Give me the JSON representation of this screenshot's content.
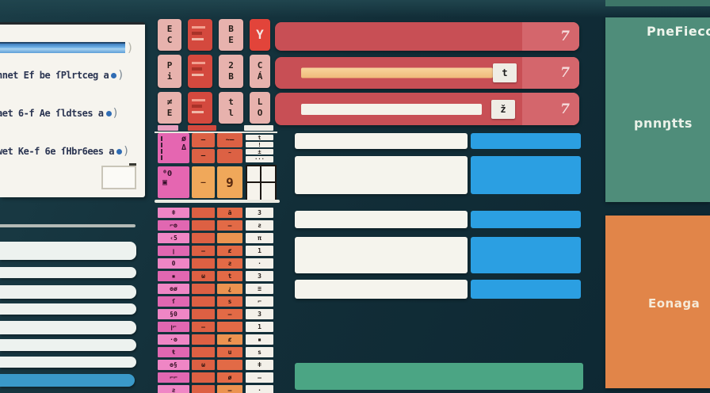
{
  "palette": {
    "background_dark_teal": "#122e38",
    "panel_white": "#f6f4ee",
    "progress_blue": "#5aa7e0",
    "key_pink": "#e7b2ad",
    "key_red": "#d4493e",
    "key_bright_red": "#e2443a",
    "table_pink": "#e167b1",
    "table_pink_light": "#ef86c5",
    "table_orange": "#dd6043",
    "table_orange_light": "#ec9350",
    "table_white": "#f3f0e9",
    "slider_row_red": "#c84f55",
    "slider_track_orange": "#f4c98c",
    "slider_track_white": "#f5f2ea",
    "row_blue": "#2b9fe2",
    "row_white": "#f5f4ed",
    "green_bar": "#4ba584",
    "teal_panel": "#4f8d7a",
    "orange_panel": "#e18549",
    "left_bar_blue": "#3a99c9"
  },
  "code_panel": {
    "bar_paren": ")",
    "lines": [
      {
        "text": "nnet Ef be ſPlrtceg a",
        "paren": ")"
      },
      {
        "text": "aet 6-f Ae ſldtses a",
        "paren": ")"
      },
      {
        "text": "wet Ke-f 6e ſHbr6ees a",
        "paren": ")"
      }
    ]
  },
  "keyboard": {
    "cells": [
      {
        "glyph": "E\nC"
      },
      {
        "glyph": ""
      },
      {
        "glyph": "B\nE"
      },
      {
        "glyph": "Y"
      },
      {
        "glyph": "P\ni"
      },
      {
        "glyph": ""
      },
      {
        "glyph": "2\nB"
      },
      {
        "glyph": "C\nÁ"
      },
      {
        "glyph": "≠\nE"
      },
      {
        "glyph": ""
      },
      {
        "glyph": "t\nl"
      },
      {
        "glyph": "L\nO"
      }
    ]
  },
  "slider_rows": [
    {
      "badge": "7",
      "handle": ""
    },
    {
      "badge": "7",
      "handle": "t"
    },
    {
      "badge": "7",
      "handle": "ž"
    }
  ],
  "table": {
    "sectionA": {
      "pink_cell_1": "ø\nΔ",
      "pink_cell_2": "⁰Θ\n▣",
      "orange_glyphs": [
        "—",
        "~—",
        "—",
        "˜"
      ],
      "light_orange_glyphs": [
        "—",
        "9"
      ],
      "white_glyphs": [
        "t",
        "!",
        "±",
        "···",
        "⁞",
        ""
      ]
    },
    "sectionB_rows": [
      {
        "pg": "ǂ",
        "o1": "",
        "o2": "ã",
        "wg": "3"
      },
      {
        "pg": "⌐ʘ",
        "o1": "",
        "o2": "—",
        "wg": "ƨ"
      },
      {
        "pg": "‹5",
        "o1": "",
        "o2": "",
        "wg": "π"
      },
      {
        "pg": "ꞁ",
        "o1": "—",
        "o2": "ȼ",
        "wg": "1"
      },
      {
        "pg": "0",
        "o1": "",
        "o2": "ƨ",
        "wg": "·"
      },
      {
        "pg": "▪",
        "o1": "ω",
        "o2": "t",
        "wg": "3"
      },
      {
        "pg": "ʘø",
        "o1": "",
        "o2": "¿",
        "wg": "≡"
      },
      {
        "pg": "ſ",
        "o1": "",
        "o2": "s",
        "wg": "⌐"
      },
      {
        "pg": "§0",
        "o1": "",
        "o2": "—",
        "wg": "3"
      },
      {
        "pg": "ꞁ⌐",
        "o1": "—",
        "o2": "",
        "wg": "1"
      },
      {
        "pg": "·ʘ",
        "o1": "",
        "o2": "ȼ",
        "wg": "▪"
      },
      {
        "pg": "ŧ",
        "o1": "",
        "o2": "u",
        "wg": "s"
      },
      {
        "pg": "ʘ§",
        "o1": "ω",
        "o2": "",
        "wg": "ǂ"
      },
      {
        "pg": "⌐⌐",
        "o1": "",
        "o2": "ø",
        "wg": "—"
      },
      {
        "pg": "ƨ",
        "o1": "",
        "o2": "—",
        "wg": "·"
      }
    ]
  },
  "teal_panel": {
    "title": "PneFiecc",
    "subtitle": "pnnŋtts"
  },
  "orange_panel": {
    "label": "Eonaga"
  }
}
